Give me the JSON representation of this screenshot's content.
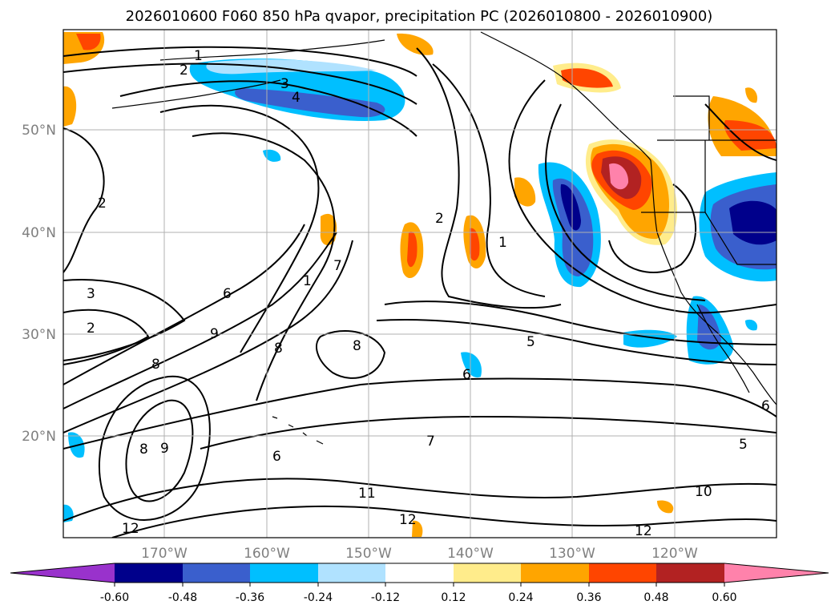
{
  "title": "2026010600 F060 850 hPa qvapor, precipitation PC (2026010800 - 2026010900)",
  "map": {
    "lat_ticks": [
      "50°N",
      "40°N",
      "30°N",
      "20°N"
    ],
    "lon_ticks": [
      "170°W",
      "160°W",
      "150°W",
      "140°W",
      "130°W",
      "120°W"
    ],
    "contour_labels": [
      "1",
      "2",
      "3",
      "4",
      "2",
      "3",
      "2",
      "6",
      "9",
      "8",
      "7",
      "1",
      "2",
      "1",
      "5",
      "8",
      "6",
      "7",
      "11",
      "12",
      "10",
      "12",
      "6",
      "9",
      "8",
      "12",
      "5",
      "6",
      "8"
    ]
  },
  "colorbar": {
    "ticks": [
      "-0.60",
      "-0.48",
      "-0.36",
      "-0.24",
      "-0.12",
      "0.12",
      "0.24",
      "0.36",
      "0.48",
      "0.60"
    ],
    "colors": [
      "#9932cc",
      "#00008b",
      "#3a5fcd",
      "#00bfff",
      "#b0e2ff",
      "#ffffff",
      "#ffec8b",
      "#ffa500",
      "#ff4500",
      "#b22222",
      "#ff82ab"
    ]
  },
  "colors": {
    "contour": "#000000",
    "coast": "#000000",
    "grid": "#b0b0b0"
  }
}
